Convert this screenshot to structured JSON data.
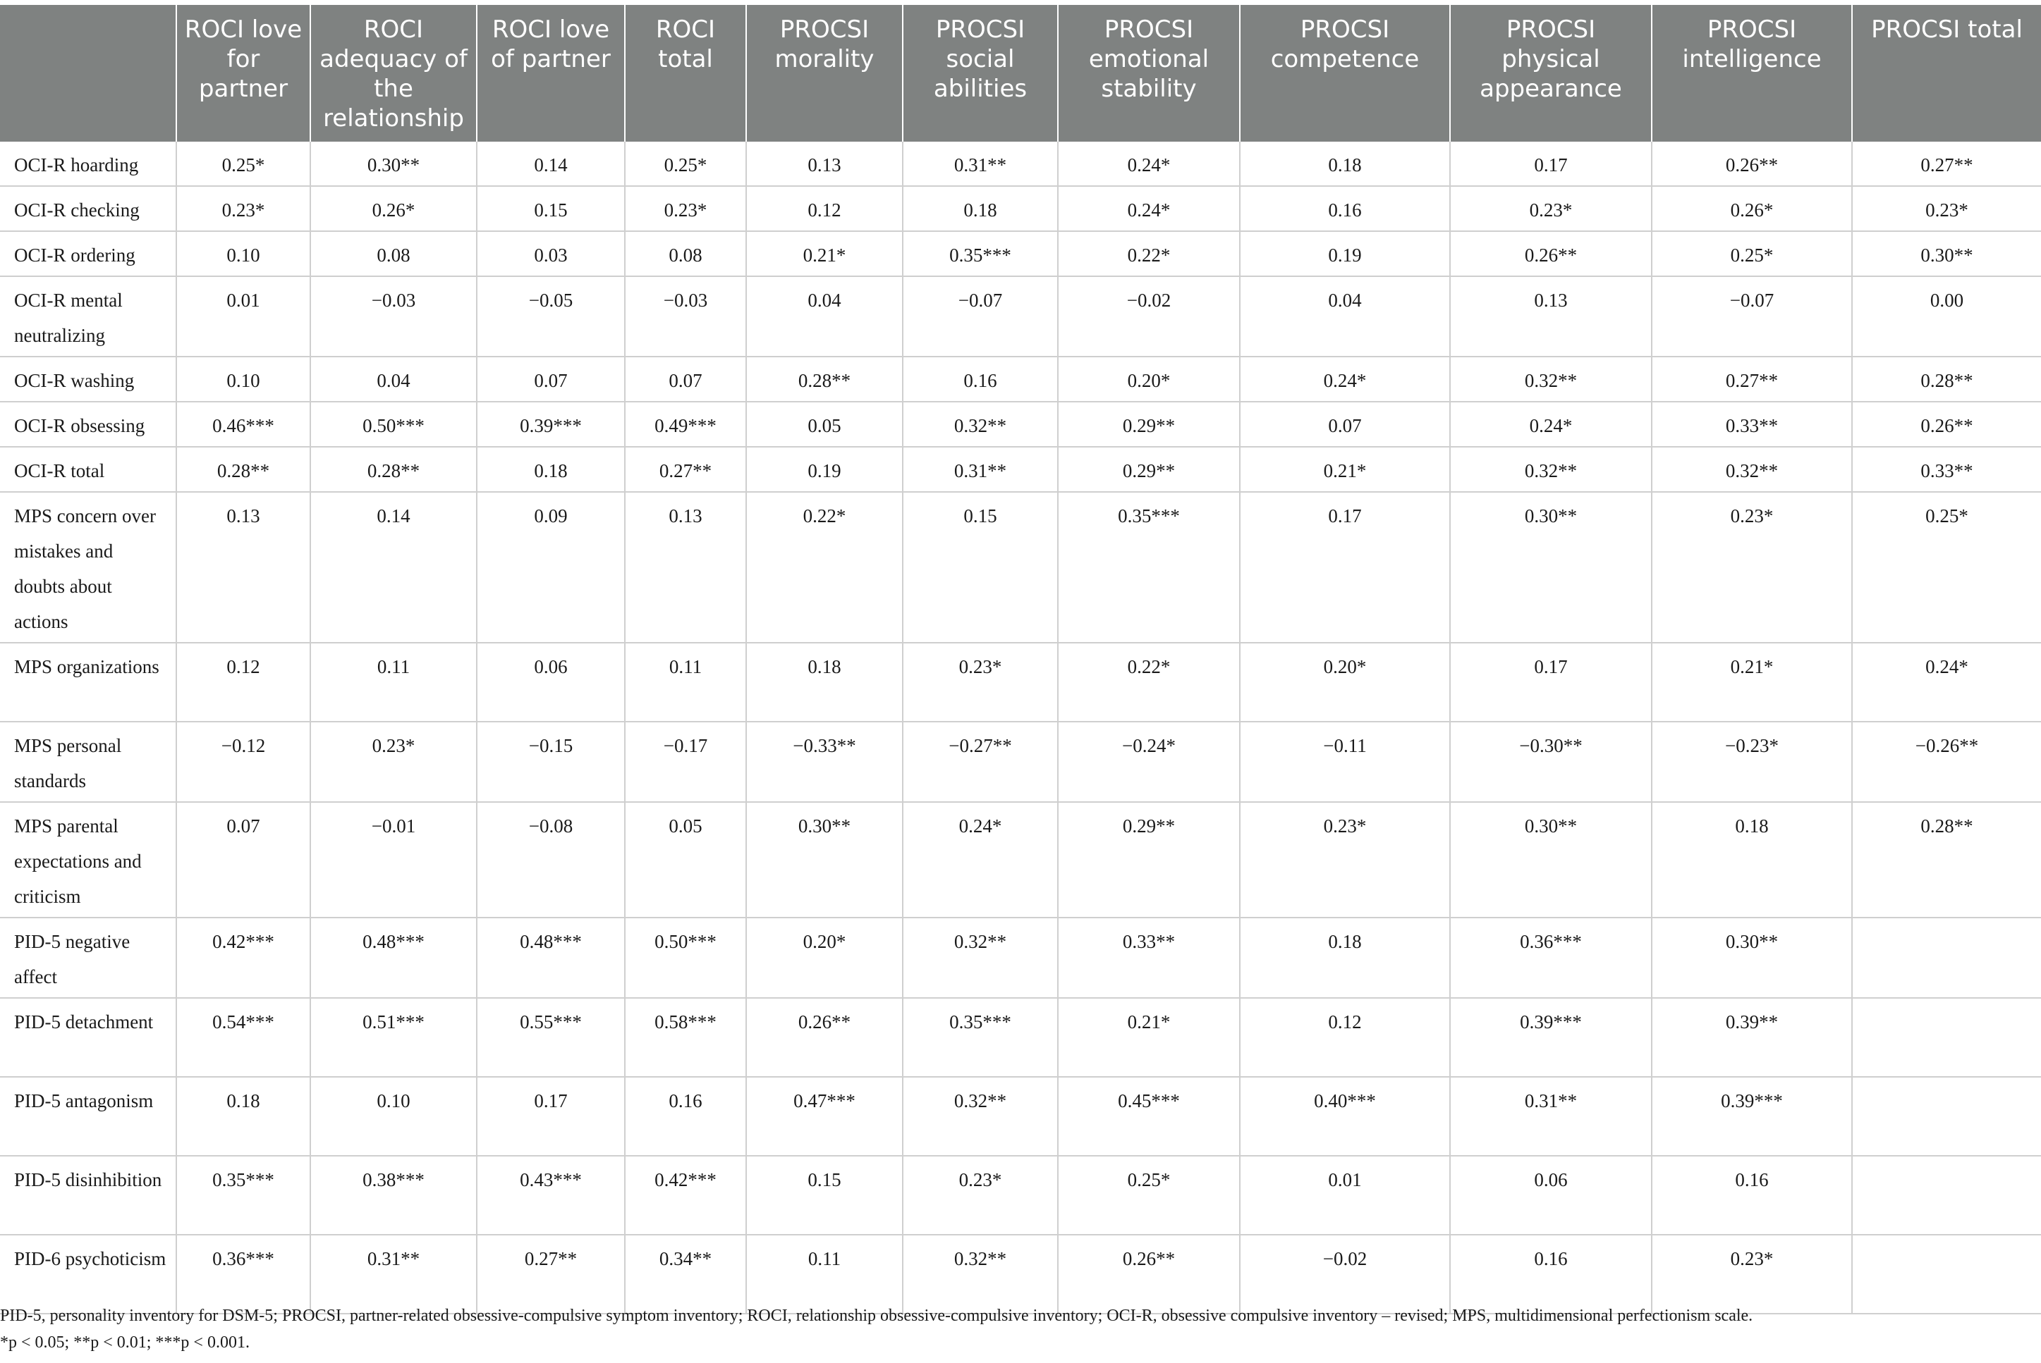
{
  "headers": [
    "",
    "ROCI love for partner",
    "ROCI adequacy of the relationship",
    "ROCI love of partner",
    "ROCI total",
    "PROCSI morality",
    "PROCSI social abilities",
    "PROCSI emotional stability",
    "PROCSI competence",
    "PROCSI physical appearance",
    "PROCSI intelligence",
    "PROCSI total"
  ],
  "rows": [
    {
      "label": "OCI-R hoarding",
      "cells": [
        "0.25*",
        "0.30**",
        "0.14",
        "0.25*",
        "0.13",
        "0.31**",
        "0.24*",
        "0.18",
        "0.17",
        "0.26**",
        "0.27**"
      ]
    },
    {
      "label": "OCI-R checking",
      "cells": [
        "0.23*",
        "0.26*",
        "0.15",
        "0.23*",
        "0.12",
        "0.18",
        "0.24*",
        "0.16",
        "0.23*",
        "0.26*",
        "0.23*"
      ]
    },
    {
      "label": "OCI-R ordering",
      "cells": [
        "0.10",
        "0.08",
        "0.03",
        "0.08",
        "0.21*",
        "0.35***",
        "0.22*",
        "0.19",
        "0.26**",
        "0.25*",
        "0.30**"
      ]
    },
    {
      "label": "OCI-R mental neutralizing",
      "cells": [
        "0.01",
        "−0.03",
        "−0.05",
        "−0.03",
        "0.04",
        "−0.07",
        "−0.02",
        "0.04",
        "0.13",
        "−0.07",
        "0.00"
      ]
    },
    {
      "label": "OCI-R washing",
      "cells": [
        "0.10",
        "0.04",
        "0.07",
        "0.07",
        "0.28**",
        "0.16",
        "0.20*",
        "0.24*",
        "0.32**",
        "0.27**",
        "0.28**"
      ]
    },
    {
      "label": "OCI-R obsessing",
      "cells": [
        "0.46***",
        "0.50***",
        "0.39***",
        "0.49***",
        "0.05",
        "0.32**",
        "0.29**",
        "0.07",
        "0.24*",
        "0.33**",
        "0.26**"
      ]
    },
    {
      "label": "OCI-R total",
      "cells": [
        "0.28**",
        "0.28**",
        "0.18",
        "0.27**",
        "0.19",
        "0.31**",
        "0.29**",
        "0.21*",
        "0.32**",
        "0.32**",
        "0.33**"
      ]
    },
    {
      "label": "MPS concern over mistakes and doubts about actions",
      "cells": [
        "0.13",
        "0.14",
        "0.09",
        "0.13",
        "0.22*",
        "0.15",
        "0.35***",
        "0.17",
        "0.30**",
        "0.23*",
        "0.25*"
      ]
    },
    {
      "label": "MPS organizations",
      "cells": [
        "0.12",
        "0.11",
        "0.06",
        "0.11",
        "0.18",
        "0.23*",
        "0.22*",
        "0.20*",
        "0.17",
        "0.21*",
        "0.24*"
      ]
    },
    {
      "label": "MPS personal standards",
      "cells": [
        "−0.12",
        "0.23*",
        "−0.15",
        "−0.17",
        "−0.33**",
        "−0.27**",
        "−0.24*",
        "−0.11",
        "−0.30**",
        "−0.23*",
        "−0.26**"
      ]
    },
    {
      "label": "MPS parental expectations and criticism",
      "cells": [
        "0.07",
        "−0.01",
        "−0.08",
        "0.05",
        "0.30**",
        "0.24*",
        "0.29**",
        "0.23*",
        "0.30**",
        "0.18",
        "0.28**"
      ]
    },
    {
      "label": "PID-5 negative affect",
      "cells": [
        "0.42***",
        "0.48***",
        "0.48***",
        "0.50***",
        "0.20*",
        "0.32**",
        "0.33**",
        "0.18",
        "0.36***",
        "0.30**",
        ""
      ]
    },
    {
      "label": "PID-5 detachment",
      "cells": [
        "0.54***",
        "0.51***",
        "0.55***",
        "0.58***",
        "0.26**",
        "0.35***",
        "0.21*",
        "0.12",
        "0.39***",
        "0.39**",
        ""
      ]
    },
    {
      "label": "PID-5 antagonism",
      "cells": [
        "0.18",
        "0.10",
        "0.17",
        "0.16",
        "0.47***",
        "0.32**",
        "0.45***",
        "0.40***",
        "0.31**",
        "0.39***",
        ""
      ]
    },
    {
      "label": "PID-5 disinhibition",
      "cells": [
        "0.35***",
        "0.38***",
        "0.43***",
        "0.42***",
        "0.15",
        "0.23*",
        "0.25*",
        "0.01",
        "0.06",
        "0.16",
        ""
      ]
    },
    {
      "label": "PID-6 psychoticism",
      "cells": [
        "0.36***",
        "0.31**",
        "0.27**",
        "0.34**",
        "0.11",
        "0.32**",
        "0.26**",
        "−0.02",
        "0.16",
        "0.23*",
        ""
      ]
    }
  ],
  "footnote": {
    "abbreviations": "PID-5, personality inventory for DSM-5; PROCSI, partner-related obsessive-compulsive symptom inventory; ROCI, relationship obsessive-compulsive inventory; OCI-R, obsessive compulsive inventory – revised; MPS, multidimensional perfectionism scale.",
    "significance": "*p < 0.05; **p < 0.01; ***p < 0.001."
  }
}
